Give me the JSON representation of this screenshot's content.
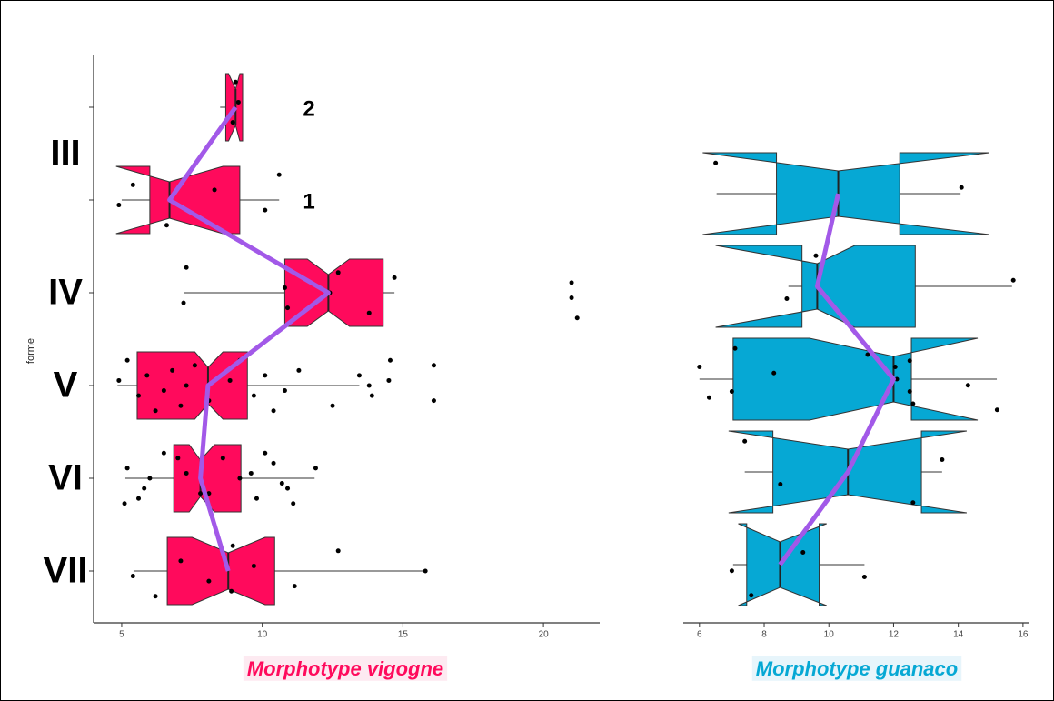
{
  "chart_data": [
    {
      "type": "boxplot",
      "orientation": "horizontal",
      "color": "#ff0a5c",
      "median_line_color": "#a259e8",
      "xlabel": "Morphotype vigogne",
      "ylabel": "forme",
      "xlim": [
        4,
        22
      ],
      "xticks": [
        5,
        10,
        15,
        20
      ],
      "groups": [
        {
          "label": "III",
          "boxes": [
            {
              "annotation": "2",
              "whislo": 8.5,
              "q1": 8.7,
              "notch_lo": 8.8,
              "med": 9.05,
              "notch_hi": 9.2,
              "q3": 9.3,
              "whishi": 9.3,
              "points": [
                9.05,
                9.15,
                8.95
              ]
            },
            {
              "annotation": "1",
              "whislo": 5.0,
              "q1": 6.0,
              "notch_lo": 4.8,
              "med": 6.7,
              "notch_hi": 8.6,
              "q3": 9.2,
              "whishi": 10.6,
              "points": [
                5.4,
                4.9,
                6.6,
                8.3,
                10.1,
                10.6
              ]
            }
          ]
        },
        {
          "label": "IV",
          "boxes": [
            {
              "whislo": 7.2,
              "q1": 10.8,
              "notch_lo": 11.6,
              "med": 12.35,
              "notch_hi": 13.1,
              "q3": 14.3,
              "whishi": 14.7,
              "points": [
                7.2,
                7.3,
                10.8,
                10.9,
                12.7,
                12.4,
                13.8,
                14.7,
                21.0,
                21.2,
                21.0
              ]
            }
          ]
        },
        {
          "label": "V",
          "boxes": [
            {
              "whislo": 4.85,
              "q1": 5.55,
              "notch_lo": 7.6,
              "med": 8.07,
              "notch_hi": 8.6,
              "q3": 9.47,
              "whishi": 13.45,
              "points": [
                13.45,
                13.9,
                14.55,
                14.5,
                16.1,
                16.1,
                13.8,
                12.5,
                11.3,
                10.8,
                10.4,
                10.1,
                9.7,
                9.2,
                8.85,
                8.1,
                7.6,
                7.3,
                7.1,
                6.8,
                6.5,
                6.2,
                5.9,
                5.6,
                5.2,
                4.9
              ]
            }
          ]
        },
        {
          "label": "VI",
          "boxes": [
            {
              "whislo": 5.13,
              "q1": 6.85,
              "notch_lo": 7.4,
              "med": 7.8,
              "notch_hi": 8.3,
              "q3": 9.24,
              "whishi": 11.86,
              "points": [
                5.1,
                5.2,
                5.8,
                6.5,
                7.3,
                7.8,
                8.6,
                9.2,
                9.8,
                10.4,
                10.7,
                11.1,
                11.9,
                10.9,
                10.1,
                9.6,
                8.1,
                7.0,
                6.0,
                5.6
              ]
            }
          ]
        },
        {
          "label": "VII",
          "boxes": [
            {
              "whislo": 5.42,
              "q1": 6.62,
              "notch_lo": 7.5,
              "med": 8.79,
              "notch_hi": 10.1,
              "q3": 10.44,
              "whishi": 15.84,
              "points": [
                5.4,
                6.2,
                7.1,
                8.1,
                8.95,
                9.7,
                11.15,
                12.7,
                15.8,
                8.9
              ]
            }
          ]
        }
      ]
    },
    {
      "type": "boxplot",
      "orientation": "horizontal",
      "color": "#06a8d4",
      "median_line_color": "#a259e8",
      "xlabel": "Morphotype guanaco",
      "xlim": [
        5.5,
        16.2
      ],
      "xticks": [
        6,
        8,
        10,
        12,
        14,
        16
      ],
      "groups": [
        {
          "boxes": [
            {
              "whislo": 6.53,
              "q1": 8.38,
              "notch_lo": 6.1,
              "med": 10.29,
              "notch_hi": 14.96,
              "q3": 12.19,
              "whishi": 14.07,
              "points": [
                6.5,
                14.1
              ]
            }
          ]
        },
        {
          "boxes": [
            {
              "whislo": 8.75,
              "q1": 9.17,
              "notch_lo": 6.5,
              "med": 9.64,
              "notch_hi": 10.8,
              "q3": 12.67,
              "whishi": 15.66,
              "points": [
                8.7,
                9.6,
                15.7
              ]
            }
          ]
        },
        {
          "boxes": [
            {
              "whislo": 6.0,
              "q1": 7.04,
              "notch_lo": 9.4,
              "med": 12.0,
              "notch_hi": 14.6,
              "q3": 12.55,
              "whishi": 15.19,
              "points": [
                6.0,
                7.0,
                7.1,
                8.3,
                6.3,
                11.2,
                12.1,
                12.6,
                12.5,
                14.3,
                15.2,
                12.05,
                12.5
              ]
            }
          ]
        },
        {
          "boxes": [
            {
              "whislo": 7.4,
              "q1": 8.27,
              "notch_lo": 6.9,
              "med": 10.59,
              "notch_hi": 14.26,
              "q3": 12.86,
              "whishi": 13.5,
              "points": [
                12.6,
                13.5,
                8.5,
                7.4
              ]
            }
          ]
        },
        {
          "boxes": [
            {
              "whislo": 7.04,
              "q1": 7.46,
              "notch_lo": 7.2,
              "med": 8.49,
              "notch_hi": 9.93,
              "q3": 9.7,
              "whishi": 11.1,
              "points": [
                7.0,
                7.6,
                9.2,
                11.1
              ]
            }
          ]
        }
      ]
    }
  ]
}
